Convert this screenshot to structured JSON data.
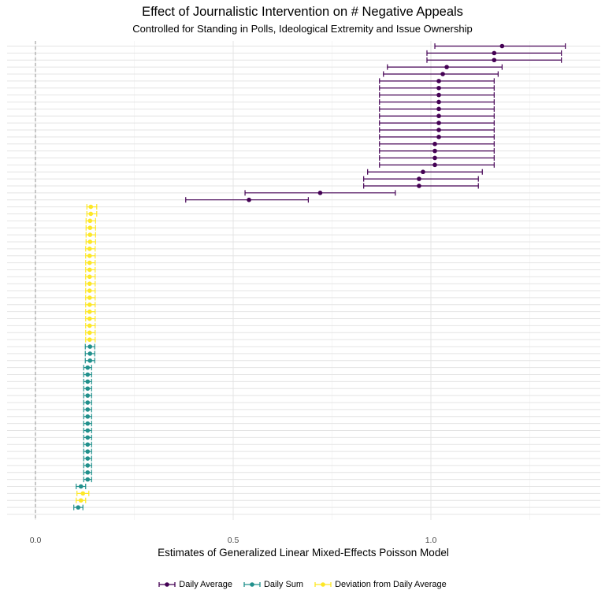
{
  "chart_data": {
    "type": "errorbar",
    "title": "Effect of Journalistic Intervention on # Negative Appeals",
    "subtitle": "Controlled for Standing in Polls, Ideological Extremity and Issue Ownership",
    "xlabel": "Estimates of Generalized Linear Mixed-Effects Poisson Model",
    "ylabel": "",
    "xlim": [
      -0.12,
      1.37
    ],
    "xticks": [
      0.0,
      0.5,
      1.0
    ],
    "xtick_labels": [
      "0.0",
      "0.5",
      "1.0"
    ],
    "reference_line": 0,
    "legend_position": "bottom",
    "colors": {
      "Daily Average": "#440154",
      "Daily Sum": "#21908C",
      "Deviation from Daily Average": "#FDE725"
    },
    "series": [
      {
        "name": "Daily Average",
        "color": "#440154",
        "rows": [
          1,
          2,
          3,
          4,
          5,
          6,
          7,
          8,
          9,
          10,
          11,
          12,
          13,
          14,
          15,
          16,
          17,
          18,
          19,
          20,
          21,
          22,
          23
        ],
        "estimate": [
          1.18,
          1.16,
          1.16,
          1.04,
          1.03,
          1.02,
          1.02,
          1.02,
          1.02,
          1.02,
          1.02,
          1.02,
          1.02,
          1.02,
          1.01,
          1.01,
          1.01,
          1.01,
          0.98,
          0.97,
          0.97,
          0.72,
          0.54
        ],
        "lower": [
          1.01,
          0.99,
          0.99,
          0.89,
          0.88,
          0.87,
          0.87,
          0.87,
          0.87,
          0.87,
          0.87,
          0.87,
          0.87,
          0.87,
          0.87,
          0.87,
          0.87,
          0.87,
          0.84,
          0.83,
          0.83,
          0.53,
          0.38
        ],
        "upper": [
          1.34,
          1.33,
          1.33,
          1.18,
          1.17,
          1.16,
          1.16,
          1.16,
          1.16,
          1.16,
          1.16,
          1.16,
          1.16,
          1.16,
          1.16,
          1.16,
          1.16,
          1.16,
          1.13,
          1.12,
          1.12,
          0.91,
          0.69
        ]
      },
      {
        "name": "Deviation from Daily Average",
        "color": "#FDE725",
        "rows": [
          24,
          25,
          26,
          27,
          28,
          29,
          30,
          31,
          32,
          33,
          34,
          35,
          36,
          37,
          38,
          39,
          40,
          41,
          42,
          43
        ],
        "estimate": [
          0.14,
          0.14,
          0.138,
          0.138,
          0.138,
          0.138,
          0.137,
          0.137,
          0.137,
          0.137,
          0.137,
          0.137,
          0.137,
          0.137,
          0.137,
          0.137,
          0.137,
          0.137,
          0.137,
          0.137
        ],
        "lower": [
          0.13,
          0.13,
          0.128,
          0.128,
          0.128,
          0.128,
          0.127,
          0.127,
          0.127,
          0.127,
          0.127,
          0.127,
          0.127,
          0.127,
          0.127,
          0.127,
          0.127,
          0.127,
          0.127,
          0.127
        ],
        "upper": [
          0.155,
          0.155,
          0.152,
          0.152,
          0.152,
          0.152,
          0.151,
          0.151,
          0.151,
          0.151,
          0.151,
          0.151,
          0.151,
          0.151,
          0.151,
          0.151,
          0.151,
          0.151,
          0.151,
          0.151
        ]
      },
      {
        "name": "Daily Sum",
        "color": "#21908C",
        "rows": [
          44,
          45,
          46,
          47,
          48,
          49,
          50,
          51,
          52,
          53,
          54,
          55,
          56,
          57,
          58,
          59,
          60,
          61,
          62,
          63,
          64,
          67
        ],
        "estimate": [
          0.138,
          0.138,
          0.138,
          0.132,
          0.132,
          0.132,
          0.132,
          0.132,
          0.132,
          0.132,
          0.132,
          0.132,
          0.132,
          0.132,
          0.132,
          0.132,
          0.132,
          0.132,
          0.132,
          0.132,
          0.115,
          0.108
        ],
        "lower": [
          0.126,
          0.126,
          0.126,
          0.122,
          0.122,
          0.122,
          0.122,
          0.122,
          0.122,
          0.122,
          0.122,
          0.122,
          0.122,
          0.122,
          0.122,
          0.122,
          0.122,
          0.122,
          0.122,
          0.122,
          0.103,
          0.097
        ],
        "upper": [
          0.15,
          0.15,
          0.15,
          0.142,
          0.142,
          0.142,
          0.142,
          0.142,
          0.142,
          0.142,
          0.142,
          0.142,
          0.142,
          0.142,
          0.142,
          0.142,
          0.142,
          0.142,
          0.142,
          0.142,
          0.127,
          0.12
        ]
      },
      {
        "name": "Deviation from Daily Average",
        "color": "#FDE725",
        "rows": [
          65,
          66
        ],
        "estimate": [
          0.12,
          0.115
        ],
        "lower": [
          0.105,
          0.103
        ],
        "upper": [
          0.135,
          0.127
        ]
      }
    ],
    "total_rows": 68
  },
  "legend": [
    {
      "label": "Daily Average",
      "color": "#440154"
    },
    {
      "label": "Daily Sum",
      "color": "#21908C"
    },
    {
      "label": "Deviation from Daily Average",
      "color": "#FDE725"
    }
  ]
}
